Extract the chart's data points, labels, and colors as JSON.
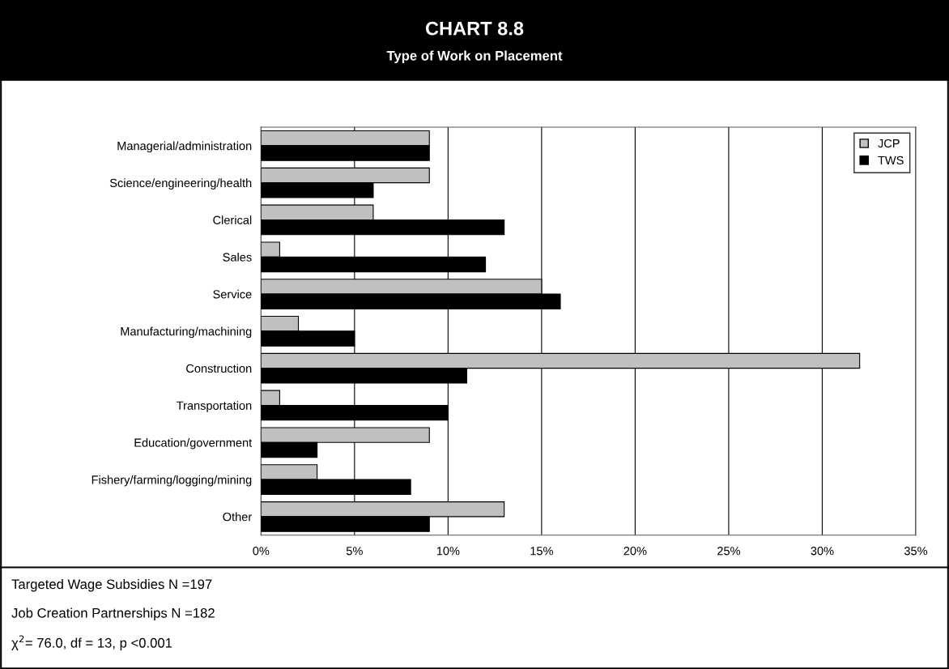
{
  "chart_data": {
    "type": "bar",
    "orientation": "horizontal",
    "title": "CHART 8.8",
    "subtitle": "Type of Work on Placement",
    "categories": [
      "Managerial/administration",
      "Science/engineering/health",
      "Clerical",
      "Sales",
      "Service",
      "Manufacturing/machining",
      "Construction",
      "Transportation",
      "Education/government",
      "Fishery/farming/logging/mining",
      "Other"
    ],
    "series": [
      {
        "name": "JCP",
        "color": "#c0c0c0",
        "values": [
          9,
          9,
          6,
          1,
          15,
          2,
          32,
          1,
          9,
          3,
          13
        ]
      },
      {
        "name": "TWS",
        "color": "#000000",
        "values": [
          9,
          6,
          13,
          12,
          16,
          5,
          11,
          10,
          3,
          8,
          9
        ]
      }
    ],
    "xlim": [
      0,
      35
    ],
    "xticks": [
      {
        "value": 0,
        "label": "0%"
      },
      {
        "value": 5,
        "label": "5%"
      },
      {
        "value": 10,
        "label": "10%"
      },
      {
        "value": 15,
        "label": "15%"
      },
      {
        "value": 20,
        "label": "20%"
      },
      {
        "value": 25,
        "label": "25%"
      },
      {
        "value": 30,
        "label": "30%"
      },
      {
        "value": 35,
        "label": "35%"
      }
    ],
    "grid": "x",
    "legend": "top right",
    "annotations": [
      "Targeted Wage Subsidies N =197",
      "Job Creation Partnerships N =182",
      "χ$^{2}$= 76.0, df = 13, p <0.001"
    ]
  }
}
